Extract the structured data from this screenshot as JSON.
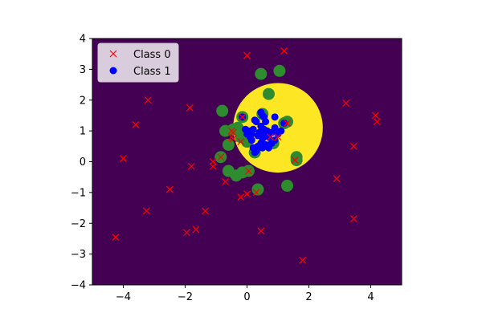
{
  "chart_data": {
    "type": "scatter",
    "title": "",
    "xlabel": "",
    "ylabel": "",
    "xlim": [
      -5,
      5
    ],
    "ylim": [
      -4,
      4
    ],
    "x_ticks": [
      -4,
      -2,
      0,
      2,
      4
    ],
    "y_ticks": [
      -4,
      -3,
      -2,
      -1,
      0,
      1,
      2,
      3,
      4
    ],
    "x_tick_labels": [
      "−4",
      "−2",
      "0",
      "2",
      "4"
    ],
    "y_tick_labels": [
      "−4",
      "−3",
      "−2",
      "−1",
      "0",
      "1",
      "2",
      "3",
      "4"
    ],
    "grid": false,
    "legend_position": "top-left",
    "background": {
      "type": "decision-region",
      "outside_color": "#440154",
      "inside_color": "#fde725",
      "region_shape": "circle",
      "center": [
        1.0,
        1.1
      ],
      "radius": 1.45
    },
    "series": [
      {
        "name": "Class 0",
        "marker": "x",
        "color": "#ff0000",
        "points": [
          [
            0.0,
            3.45
          ],
          [
            1.2,
            3.6
          ],
          [
            -3.2,
            2.0
          ],
          [
            -1.85,
            1.75
          ],
          [
            -3.6,
            1.2
          ],
          [
            -4.0,
            0.1
          ],
          [
            -1.8,
            -0.15
          ],
          [
            -1.1,
            0.0
          ],
          [
            -1.1,
            -0.15
          ],
          [
            -2.5,
            -0.9
          ],
          [
            -0.7,
            -0.65
          ],
          [
            -0.2,
            -1.15
          ],
          [
            0.0,
            -1.05
          ],
          [
            0.3,
            -1.0
          ],
          [
            -1.35,
            -1.6
          ],
          [
            -3.25,
            -1.6
          ],
          [
            -1.65,
            -2.2
          ],
          [
            -1.95,
            -2.3
          ],
          [
            -4.25,
            -2.45
          ],
          [
            0.45,
            -2.25
          ],
          [
            1.8,
            -3.2
          ],
          [
            3.2,
            1.9
          ],
          [
            4.15,
            1.5
          ],
          [
            4.2,
            1.3
          ],
          [
            3.45,
            0.5
          ],
          [
            2.9,
            -0.55
          ],
          [
            3.45,
            -1.85
          ],
          [
            -0.5,
            1.0
          ],
          [
            -0.45,
            0.95
          ],
          [
            -0.5,
            0.8
          ],
          [
            -0.45,
            0.75
          ],
          [
            -0.2,
            0.65
          ],
          [
            0.75,
            0.8
          ],
          [
            1.0,
            0.8
          ],
          [
            1.55,
            0.05
          ],
          [
            1.3,
            1.25
          ],
          [
            -0.15,
            1.45
          ],
          [
            0.05,
            -0.3
          ],
          [
            -0.85,
            0.15
          ]
        ]
      },
      {
        "name": "Class 1",
        "marker": "o",
        "color": "#0000ff",
        "points": [
          [
            0.45,
            1.6
          ],
          [
            0.5,
            1.5
          ],
          [
            0.55,
            1.45
          ],
          [
            0.25,
            1.35
          ],
          [
            0.3,
            1.3
          ],
          [
            0.9,
            1.45
          ],
          [
            0.6,
            1.3
          ],
          [
            0.45,
            1.15
          ],
          [
            0.55,
            1.05
          ],
          [
            0.4,
            0.95
          ],
          [
            0.65,
            1.0
          ],
          [
            0.8,
            0.95
          ],
          [
            1.0,
            0.9
          ],
          [
            0.7,
            0.8
          ],
          [
            0.5,
            0.75
          ],
          [
            0.9,
            0.7
          ],
          [
            0.45,
            0.6
          ],
          [
            0.6,
            0.55
          ],
          [
            0.35,
            0.5
          ],
          [
            0.5,
            0.45
          ],
          [
            0.2,
            0.45
          ],
          [
            0.25,
            0.3
          ],
          [
            0.2,
            1.05
          ],
          [
            0.15,
            0.9
          ],
          [
            0.1,
            0.8
          ],
          [
            0.05,
            1.0
          ],
          [
            -0.05,
            1.05
          ],
          [
            0.0,
            0.9
          ],
          [
            0.15,
            0.7
          ],
          [
            0.7,
            0.45
          ],
          [
            0.8,
            0.6
          ],
          [
            0.35,
            0.85
          ],
          [
            0.55,
            0.9
          ],
          [
            0.9,
            1.1
          ],
          [
            1.1,
            1.0
          ],
          [
            0.3,
            0.35
          ],
          [
            -0.15,
            1.45
          ],
          [
            1.2,
            1.25
          ]
        ]
      }
    ],
    "highlighted_points": {
      "color": "#2e8b2e",
      "points": [
        [
          0.45,
          2.85
        ],
        [
          1.05,
          2.95
        ],
        [
          0.7,
          2.2
        ],
        [
          -0.8,
          1.65
        ],
        [
          -0.15,
          1.45
        ],
        [
          0.5,
          1.55
        ],
        [
          1.3,
          1.3
        ],
        [
          1.2,
          1.25
        ],
        [
          -0.45,
          1.05
        ],
        [
          -0.7,
          1.0
        ],
        [
          -0.3,
          1.1
        ],
        [
          -0.1,
          0.95
        ],
        [
          -0.2,
          0.8
        ],
        [
          0.0,
          0.65
        ],
        [
          -0.6,
          0.55
        ],
        [
          0.85,
          0.6
        ],
        [
          -0.85,
          0.15
        ],
        [
          1.6,
          0.15
        ],
        [
          1.6,
          0.05
        ],
        [
          -0.6,
          -0.3
        ],
        [
          -0.35,
          -0.45
        ],
        [
          0.05,
          -0.3
        ],
        [
          0.35,
          -0.9
        ],
        [
          1.3,
          -0.78
        ],
        [
          0.25,
          0.3
        ],
        [
          -0.15,
          -0.35
        ]
      ]
    }
  }
}
